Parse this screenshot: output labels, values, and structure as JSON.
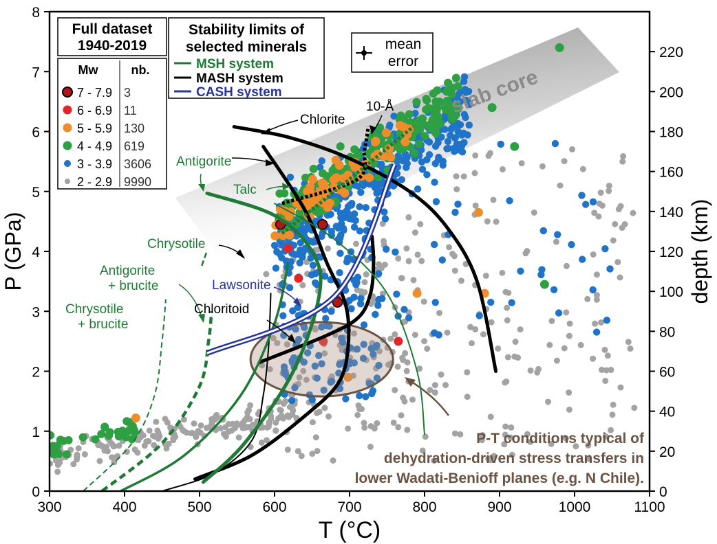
{
  "chart_data": {
    "type": "scatter",
    "xlabel": "T (°C)",
    "ylabel": "P (GPa)",
    "y2label": "depth (km)",
    "xlim": [
      300,
      1100
    ],
    "ylim": [
      0,
      8
    ],
    "y2lim": [
      0,
      240
    ],
    "x_ticks": [
      300,
      400,
      500,
      600,
      700,
      800,
      900,
      1000,
      1100
    ],
    "y_ticks": [
      0,
      1,
      2,
      3,
      4,
      5,
      6,
      7,
      8
    ],
    "y2_ticks": [
      0,
      20,
      40,
      60,
      80,
      100,
      120,
      140,
      160,
      180,
      200,
      220
    ],
    "grid": false,
    "legend": {
      "title_line1": "Full dataset",
      "title_line2": "1940-2019",
      "col_mw": "Mw",
      "col_nb": "nb.",
      "entries": [
        {
          "mw": "7 - 7.9",
          "nb": "3",
          "color": "#b01818",
          "edge": "#000000"
        },
        {
          "mw": "6 - 6.9",
          "nb": "11",
          "color": "#e02626"
        },
        {
          "mw": "5 - 5.9",
          "nb": "130",
          "color": "#f08c2a"
        },
        {
          "mw": "4 - 4.9",
          "nb": "619",
          "color": "#2ea043"
        },
        {
          "mw": "3 - 3.9",
          "nb": "3606",
          "color": "#1f73c8"
        },
        {
          "mw": "2 - 2.9",
          "nb": "9990",
          "color": "#a3a3a3"
        }
      ]
    },
    "stability_legend": {
      "title_line1": "Stability limits of",
      "title_line2": "selected minerals",
      "items": [
        {
          "label": "MSH system",
          "color": "#1e7a34"
        },
        {
          "label": "MASH system",
          "color": "#000000"
        },
        {
          "label": "CASH system",
          "color": "#27349a"
        }
      ]
    },
    "error_box": {
      "line1": "mean",
      "line2": "error"
    },
    "slab_core_label": "slab core",
    "annotations": {
      "chlorite": "Chlorite",
      "ten_a": "10-Å",
      "antigorite": "Antigorite",
      "talc": "Talc",
      "chrysotile": "Chrysotile",
      "antigorite_brucite_1": "Antigorite",
      "antigorite_brucite_2": "+ brucite",
      "lawsonite": "Lawsonite",
      "chrysotile_brucite_1": "Chrysotile",
      "chrysotile_brucite_2": "+ brucite",
      "chloritoid": "Chloritoid",
      "pt_line1": "P-T conditions typical of",
      "pt_line2": "dehydration-driven stress transfers in",
      "pt_line3": "lower Wadati-Benioff planes (e.g. N Chile)."
    },
    "curves": [
      {
        "name": "Chlorite",
        "system": "MASH",
        "style": "solid-bold",
        "color": "#000000",
        "points": [
          [
            546,
            6.08
          ],
          [
            620,
            5.9
          ],
          [
            700,
            5.55
          ],
          [
            780,
            5.0
          ],
          [
            830,
            4.4
          ],
          [
            870,
            3.5
          ],
          [
            895,
            2.0
          ]
        ]
      },
      {
        "name": "Chlorite-lower",
        "system": "MASH",
        "style": "solid-bold",
        "color": "#000000",
        "points": [
          [
            585,
            5.75
          ],
          [
            640,
            4.7
          ],
          [
            670,
            3.8
          ],
          [
            695,
            3.1
          ],
          [
            698,
            2.4
          ],
          [
            685,
            1.8
          ],
          [
            640,
            1.25
          ],
          [
            570,
            0.6
          ],
          [
            494,
            0.2
          ]
        ]
      },
      {
        "name": "Chloritoid",
        "system": "MASH",
        "style": "solid-bold",
        "color": "#000000",
        "points": [
          [
            580,
            2.15
          ],
          [
            670,
            2.6
          ],
          [
            712,
            2.9
          ],
          [
            728,
            3.3
          ],
          [
            732,
            3.8
          ],
          [
            730,
            4.25
          ]
        ]
      },
      {
        "name": "Chloritoid-thin",
        "system": "MASH",
        "style": "solid-thin",
        "color": "#000000",
        "points": [
          [
            450,
            0
          ],
          [
            520,
            0.3
          ],
          [
            570,
            0.85
          ],
          [
            585,
            1.6
          ],
          [
            592,
            2.4
          ],
          [
            595,
            3.3
          ]
        ]
      },
      {
        "name": "10-Å",
        "system": "MASH",
        "style": "dotted",
        "color": "#000000",
        "points": [
          [
            610,
            4.8
          ],
          [
            710,
            5.2
          ],
          [
            720,
            5.7
          ],
          [
            725,
            6.08
          ]
        ]
      },
      {
        "name": "Antigorite",
        "system": "MSH",
        "style": "solid-bold",
        "color": "#1e7a34",
        "points": [
          [
            505,
            0.15
          ],
          [
            560,
            0.8
          ],
          [
            625,
            2.0
          ],
          [
            660,
            3.3
          ],
          [
            650,
            4.0
          ],
          [
            600,
            4.6
          ],
          [
            510,
            4.97
          ]
        ]
      },
      {
        "name": "Talc",
        "system": "MSH",
        "style": "solid-thin",
        "color": "#1e7a34",
        "points": [
          [
            600,
            4.8
          ],
          [
            680,
            4.2
          ],
          [
            750,
            3.3
          ],
          [
            790,
            2.0
          ],
          [
            800,
            0.95
          ]
        ]
      },
      {
        "name": "Chrysotile",
        "system": "MSH",
        "style": "solid",
        "color": "#1e7a34",
        "points": [
          [
            395,
            0
          ],
          [
            480,
            0.6
          ],
          [
            555,
            1.6
          ],
          [
            600,
            2.8
          ],
          [
            618,
            3.8
          ]
        ]
      },
      {
        "name": "Antigorite + brucite",
        "system": "MSH",
        "style": "dashed-bold",
        "color": "#1e7a34",
        "points": [
          [
            370,
            0
          ],
          [
            450,
            0.8
          ],
          [
            500,
            1.75
          ],
          [
            512,
            2.5
          ],
          [
            516,
            3.0
          ]
        ]
      },
      {
        "name": "Chrysotile + brucite",
        "system": "MSH",
        "style": "dashed-thin",
        "color": "#1e7a34",
        "points": [
          [
            345,
            0
          ],
          [
            410,
            0.8
          ],
          [
            440,
            1.6
          ],
          [
            450,
            2.5
          ],
          [
            455,
            3.2
          ]
        ]
      },
      {
        "name": "Talc-dotted",
        "system": "MSH",
        "style": "dotted",
        "color": "#1e7a34",
        "points": [
          [
            610,
            4.3
          ],
          [
            680,
            5.0
          ],
          [
            785,
            6.08
          ]
        ]
      },
      {
        "name": "Lawsonite",
        "system": "CASH",
        "style": "double",
        "color": "#27349a",
        "points": [
          [
            510,
            2.3
          ],
          [
            680,
            3.25
          ],
          [
            760,
            5.45
          ]
        ]
      }
    ],
    "ellipse": {
      "cx": 663,
      "cy": 2.2,
      "rx": 95,
      "ry": 0.62,
      "color": "#6b5343"
    }
  }
}
